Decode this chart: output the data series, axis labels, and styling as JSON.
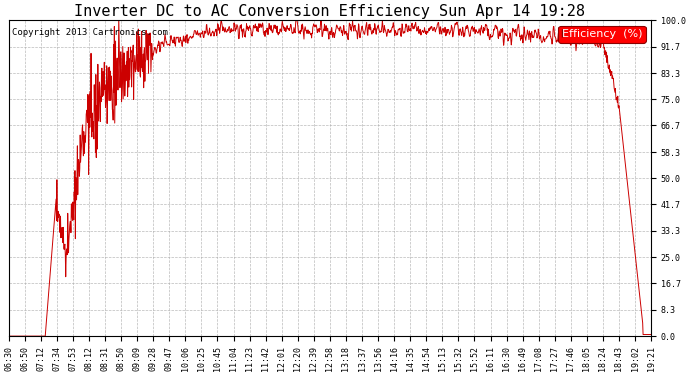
{
  "title": "Inverter DC to AC Conversion Efficiency Sun Apr 14 19:28",
  "copyright": "Copyright 2013 Cartronics.com",
  "legend_label": "Efficiency  (%)",
  "line_color": "#cc0000",
  "bg_color": "#ffffff",
  "plot_bg_color": "#ffffff",
  "grid_color": "#aaaaaa",
  "ylim": [
    0.0,
    100.0
  ],
  "yticks": [
    0.0,
    8.3,
    16.7,
    25.0,
    33.3,
    41.7,
    50.0,
    58.3,
    66.7,
    75.0,
    83.3,
    91.7,
    100.0
  ],
  "xtick_labels": [
    "06:30",
    "06:50",
    "07:12",
    "07:34",
    "07:53",
    "08:12",
    "08:31",
    "08:50",
    "09:09",
    "09:28",
    "09:47",
    "10:06",
    "10:25",
    "10:45",
    "11:04",
    "11:23",
    "11:42",
    "12:01",
    "12:20",
    "12:39",
    "12:58",
    "13:18",
    "13:37",
    "13:56",
    "14:16",
    "14:35",
    "14:54",
    "15:13",
    "15:32",
    "15:52",
    "16:11",
    "16:30",
    "16:49",
    "17:08",
    "17:27",
    "17:46",
    "18:05",
    "18:24",
    "18:43",
    "19:02",
    "19:21"
  ],
  "title_fontsize": 11,
  "copyright_fontsize": 6.5,
  "legend_fontsize": 8,
  "tick_fontsize": 6,
  "line_width": 0.7
}
